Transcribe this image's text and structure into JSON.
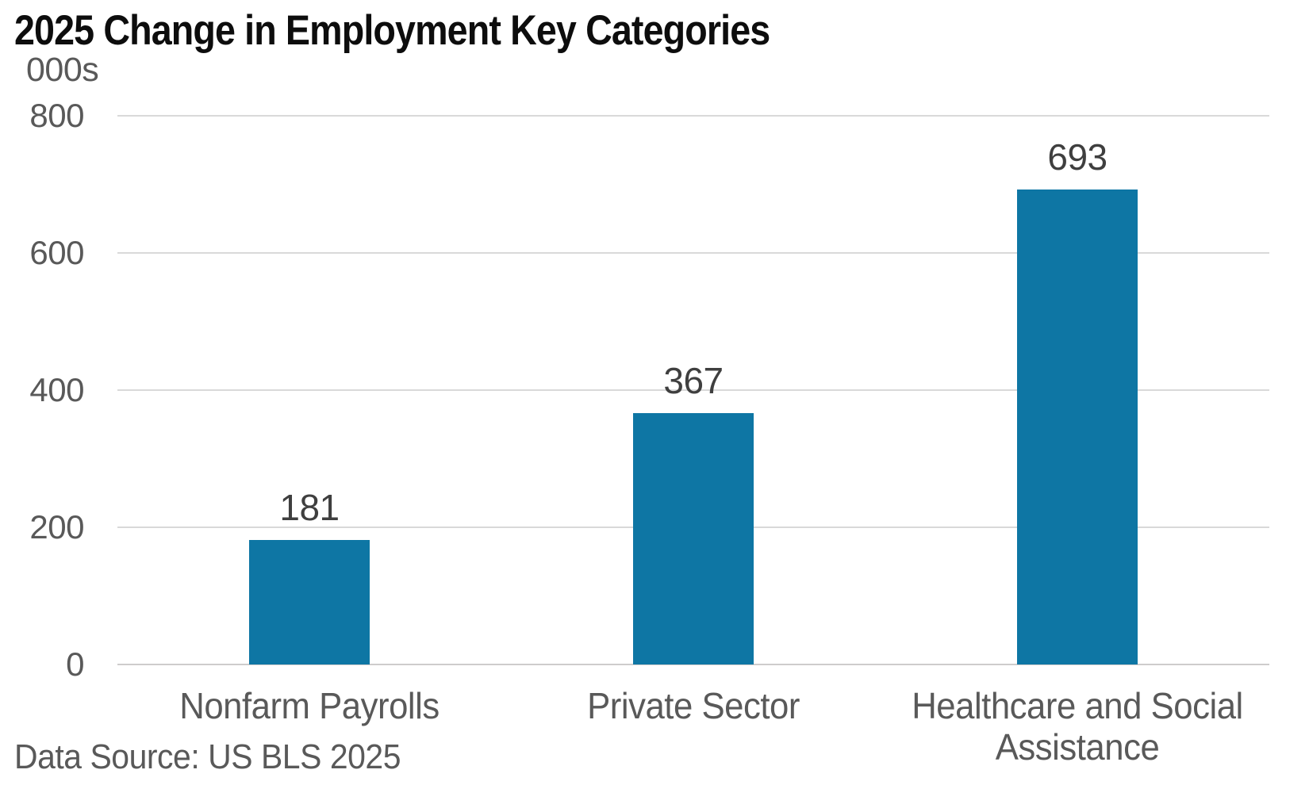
{
  "chart_data": {
    "type": "bar",
    "title": "2025 Change in Employment Key Categories",
    "unit_label": "000s",
    "xlabel": "",
    "ylabel": "000s",
    "categories": [
      "Nonfarm Payrolls",
      "Private Sector",
      "Healthcare and Social Assistance"
    ],
    "values": [
      181,
      367,
      693
    ],
    "data_labels": [
      "181",
      "367",
      "693"
    ],
    "yticks": [
      0,
      200,
      400,
      600,
      800
    ],
    "ylim": [
      0,
      800
    ],
    "grid": true,
    "legend_position": "none",
    "colors": {
      "bar": "#0e76a4",
      "data_label": "#3f3f3f",
      "axis_text": "#595959",
      "gridline": "#d9d9d9",
      "title": "#0d0d0d"
    }
  },
  "footer": {
    "source": "Data Source: US BLS 2025"
  }
}
